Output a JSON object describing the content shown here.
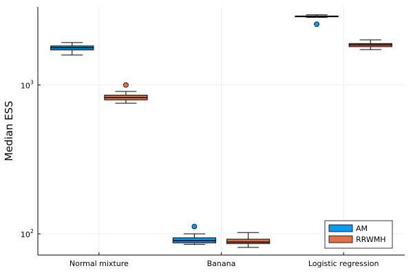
{
  "chart_data": {
    "type": "box",
    "title": "",
    "xlabel": "",
    "ylabel": "Median ESS",
    "yscale": "log10",
    "ylim": [
      72,
      3350
    ],
    "grid": true,
    "legend_position": "bottom-right",
    "categories": [
      "Normal mixture",
      "Banana",
      "Logistic regression"
    ],
    "y_ticks": [
      {
        "value": 100,
        "base": "10",
        "exp": "2"
      },
      {
        "value": 1000,
        "base": "10",
        "exp": "3"
      }
    ],
    "series": [
      {
        "name": "AM",
        "color": "#0d9bf2",
        "boxes": [
          {
            "category": "Normal mixture",
            "whisker_low": 1590,
            "q1": 1720,
            "median": 1780,
            "q3": 1830,
            "whisker_high": 1930,
            "outliers": []
          },
          {
            "category": "Banana",
            "whisker_low": 85,
            "q1": 87,
            "median": 90,
            "q3": 94,
            "whisker_high": 100,
            "outliers": [
              112
            ]
          },
          {
            "category": "Logistic regression",
            "whisker_low": 2850,
            "q1": 2870,
            "median": 2890,
            "q3": 2910,
            "whisker_high": 2960,
            "outliers": [
              2560
            ]
          }
        ]
      },
      {
        "name": "RRWMH",
        "color": "#e26f45",
        "boxes": [
          {
            "category": "Normal mixture",
            "whisker_low": 755,
            "q1": 795,
            "median": 825,
            "q3": 855,
            "whisker_high": 905,
            "outliers": [
              1000
            ]
          },
          {
            "category": "Banana",
            "whisker_low": 81,
            "q1": 86,
            "median": 88,
            "q3": 92,
            "whisker_high": 102,
            "outliers": []
          },
          {
            "category": "Logistic regression",
            "whisker_low": 1730,
            "q1": 1810,
            "median": 1860,
            "q3": 1900,
            "whisker_high": 2010,
            "outliers": []
          }
        ]
      }
    ]
  }
}
